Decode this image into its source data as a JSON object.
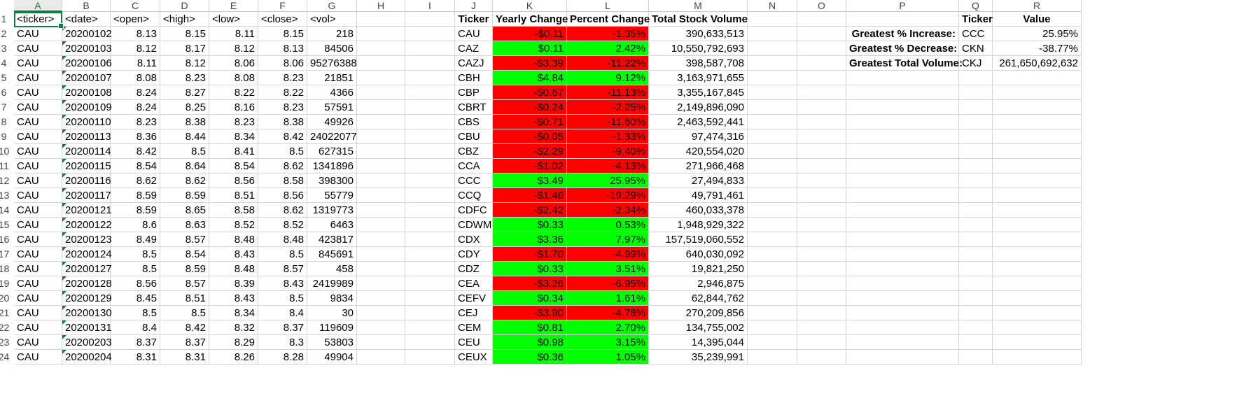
{
  "columns": [
    "A",
    "B",
    "C",
    "D",
    "E",
    "F",
    "G",
    "H",
    "I",
    "J",
    "K",
    "L",
    "M",
    "N",
    "O",
    "P",
    "Q",
    "R"
  ],
  "row_numbers": [
    "1",
    "2",
    "3",
    "4",
    "5",
    "6",
    "7",
    "8",
    "9",
    "10",
    "11",
    "12",
    "13",
    "14",
    "15",
    "16",
    "17",
    "18",
    "19",
    "20",
    "21",
    "22",
    "23",
    "24"
  ],
  "active_cell": "A1",
  "colors": {
    "negative": "#ff0000",
    "positive": "#00ff00",
    "accent": "#107c41",
    "error_triangle": "#107c41"
  },
  "raw_headers": [
    "<ticker>",
    "<date>",
    "<open>",
    "<high>",
    "<low>",
    "<close>",
    "<vol>"
  ],
  "raw_rows": [
    [
      "CAU",
      "20200102",
      "8.13",
      "8.15",
      "8.11",
      "8.15",
      "218"
    ],
    [
      "CAU",
      "20200103",
      "8.12",
      "8.17",
      "8.12",
      "8.13",
      "84506"
    ],
    [
      "CAU",
      "20200106",
      "8.11",
      "8.12",
      "8.06",
      "8.06",
      "95276388"
    ],
    [
      "CAU",
      "20200107",
      "8.08",
      "8.23",
      "8.08",
      "8.23",
      "21851"
    ],
    [
      "CAU",
      "20200108",
      "8.24",
      "8.27",
      "8.22",
      "8.22",
      "4366"
    ],
    [
      "CAU",
      "20200109",
      "8.24",
      "8.25",
      "8.16",
      "8.23",
      "57591"
    ],
    [
      "CAU",
      "20200110",
      "8.23",
      "8.38",
      "8.23",
      "8.38",
      "49926"
    ],
    [
      "CAU",
      "20200113",
      "8.36",
      "8.44",
      "8.34",
      "8.42",
      "24022077"
    ],
    [
      "CAU",
      "20200114",
      "8.42",
      "8.5",
      "8.41",
      "8.5",
      "627315"
    ],
    [
      "CAU",
      "20200115",
      "8.54",
      "8.64",
      "8.54",
      "8.62",
      "1341896"
    ],
    [
      "CAU",
      "20200116",
      "8.62",
      "8.62",
      "8.56",
      "8.58",
      "398300"
    ],
    [
      "CAU",
      "20200117",
      "8.59",
      "8.59",
      "8.51",
      "8.56",
      "55779"
    ],
    [
      "CAU",
      "20200121",
      "8.59",
      "8.65",
      "8.58",
      "8.62",
      "1319773"
    ],
    [
      "CAU",
      "20200122",
      "8.6",
      "8.63",
      "8.52",
      "8.52",
      "6463"
    ],
    [
      "CAU",
      "20200123",
      "8.49",
      "8.57",
      "8.48",
      "8.48",
      "423817"
    ],
    [
      "CAU",
      "20200124",
      "8.5",
      "8.54",
      "8.43",
      "8.5",
      "845691"
    ],
    [
      "CAU",
      "20200127",
      "8.5",
      "8.59",
      "8.48",
      "8.57",
      "458"
    ],
    [
      "CAU",
      "20200128",
      "8.56",
      "8.57",
      "8.39",
      "8.43",
      "2419989"
    ],
    [
      "CAU",
      "20200129",
      "8.45",
      "8.51",
      "8.43",
      "8.5",
      "9834"
    ],
    [
      "CAU",
      "20200130",
      "8.5",
      "8.5",
      "8.34",
      "8.4",
      "30"
    ],
    [
      "CAU",
      "20200131",
      "8.4",
      "8.42",
      "8.32",
      "8.37",
      "119609"
    ],
    [
      "CAU",
      "20200203",
      "8.37",
      "8.37",
      "8.29",
      "8.3",
      "53803"
    ],
    [
      "CAU",
      "20200204",
      "8.31",
      "8.31",
      "8.26",
      "8.28",
      "49904"
    ]
  ],
  "summary_headers": [
    "Ticker",
    "Yearly Change",
    "Percent Change",
    "Total Stock Volume"
  ],
  "summary_rows": [
    {
      "ticker": "CAU",
      "change": "-$0.11",
      "percent": "-1.35%",
      "volume": "390,633,513",
      "status": "neg"
    },
    {
      "ticker": "CAZ",
      "change": "$0.11",
      "percent": "2.42%",
      "volume": "10,550,792,693",
      "status": "pos"
    },
    {
      "ticker": "CAZJ",
      "change": "-$3.39",
      "percent": "-11.22%",
      "volume": "398,587,708",
      "status": "neg"
    },
    {
      "ticker": "CBH",
      "change": "$4.84",
      "percent": "9.12%",
      "volume": "3,163,971,655",
      "status": "pos"
    },
    {
      "ticker": "CBP",
      "change": "-$0.67",
      "percent": "-11.13%",
      "volume": "3,355,167,845",
      "status": "neg"
    },
    {
      "ticker": "CBRT",
      "change": "-$0.24",
      "percent": "-2.25%",
      "volume": "2,149,896,090",
      "status": "neg"
    },
    {
      "ticker": "CBS",
      "change": "-$0.71",
      "percent": "-11.60%",
      "volume": "2,463,592,441",
      "status": "neg"
    },
    {
      "ticker": "CBU",
      "change": "-$0.05",
      "percent": "-1.33%",
      "volume": "97,474,316",
      "status": "neg"
    },
    {
      "ticker": "CBZ",
      "change": "-$2.29",
      "percent": "-9.40%",
      "volume": "420,554,020",
      "status": "neg"
    },
    {
      "ticker": "CCA",
      "change": "-$1.02",
      "percent": "-4.13%",
      "volume": "271,966,468",
      "status": "neg"
    },
    {
      "ticker": "CCC",
      "change": "$3.49",
      "percent": "25.95%",
      "volume": "27,494,833",
      "status": "pos"
    },
    {
      "ticker": "CCQ",
      "change": "-$1.46",
      "percent": "-19.29%",
      "volume": "49,791,461",
      "status": "neg"
    },
    {
      "ticker": "CDFC",
      "change": "-$2.42",
      "percent": "-2.34%",
      "volume": "460,033,378",
      "status": "neg"
    },
    {
      "ticker": "CDWM",
      "change": "$0.33",
      "percent": "0.53%",
      "volume": "1,948,929,322",
      "status": "pos"
    },
    {
      "ticker": "CDX",
      "change": "$3.36",
      "percent": "7.97%",
      "volume": "157,519,060,552",
      "status": "pos"
    },
    {
      "ticker": "CDY",
      "change": "-$1.70",
      "percent": "-4.99%",
      "volume": "640,030,092",
      "status": "neg"
    },
    {
      "ticker": "CDZ",
      "change": "$0.33",
      "percent": "3.51%",
      "volume": "19,821,250",
      "status": "pos"
    },
    {
      "ticker": "CEA",
      "change": "-$3.26",
      "percent": "-6.95%",
      "volume": "2,946,875",
      "status": "neg"
    },
    {
      "ticker": "CEFV",
      "change": "$0.34",
      "percent": "1.61%",
      "volume": "62,844,762",
      "status": "pos"
    },
    {
      "ticker": "CEJ",
      "change": "-$3.90",
      "percent": "-4.78%",
      "volume": "270,209,856",
      "status": "neg"
    },
    {
      "ticker": "CEM",
      "change": "$0.81",
      "percent": "2.70%",
      "volume": "134,755,002",
      "status": "pos"
    },
    {
      "ticker": "CEU",
      "change": "$0.98",
      "percent": "3.15%",
      "volume": "14,395,044",
      "status": "pos"
    },
    {
      "ticker": "CEUX",
      "change": "$0.36",
      "percent": "1.05%",
      "volume": "35,239,991",
      "status": "pos"
    }
  ],
  "greatest": {
    "headers": [
      "Ticker",
      "Value"
    ],
    "rows": [
      {
        "label": "Greatest % Increase:",
        "ticker": "CCC",
        "value": "25.95%"
      },
      {
        "label": "Greatest % Decrease:",
        "ticker": "CKN",
        "value": "-38.77%"
      },
      {
        "label": "Greatest Total Volume:",
        "ticker": "CKJ",
        "value": "261,650,692,632"
      }
    ]
  }
}
